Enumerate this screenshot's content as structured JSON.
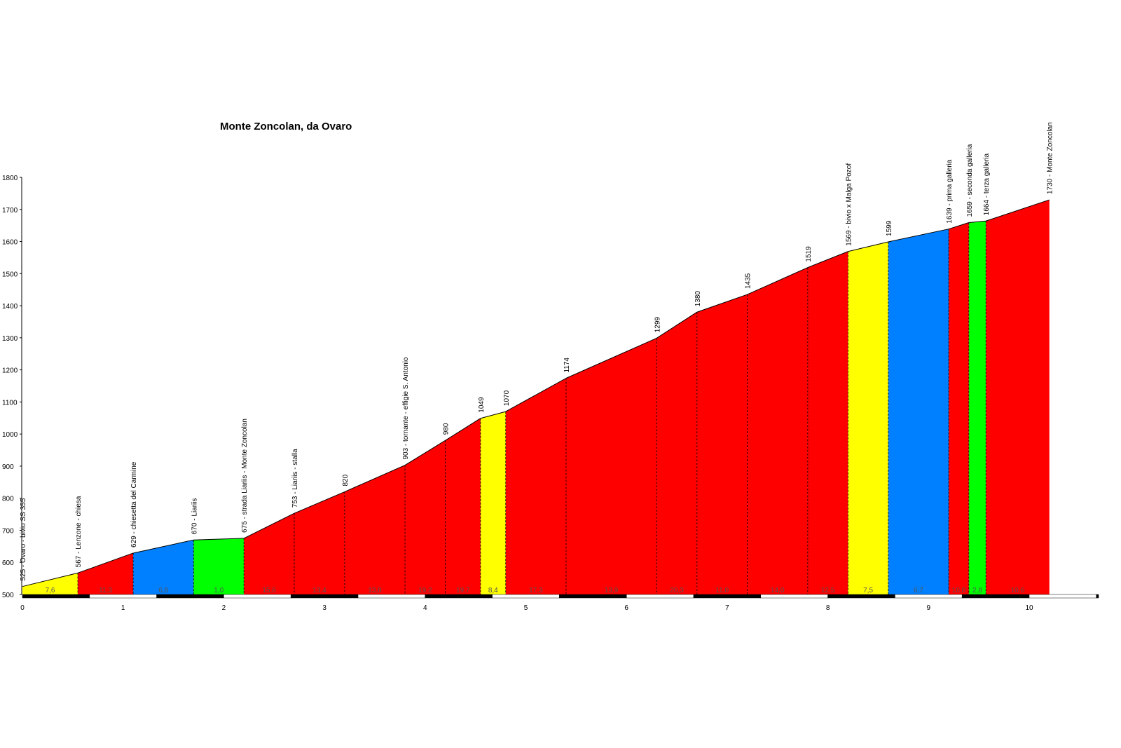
{
  "chart_data": {
    "type": "area",
    "title": "Monte Zoncolan, da Ovaro",
    "xlabel": "",
    "ylabel": "",
    "xlim": [
      0,
      10.7
    ],
    "ylim": [
      500,
      1800
    ],
    "x_ticks": [
      "0",
      "1",
      "2",
      "3",
      "4",
      "5",
      "6",
      "7",
      "8",
      "9",
      "10"
    ],
    "y_ticks": [
      "500",
      "600",
      "700",
      "800",
      "900",
      "1000",
      "1100",
      "1200",
      "1300",
      "1400",
      "1500",
      "1600",
      "1700",
      "1800"
    ],
    "points": [
      {
        "km": 0.0,
        "alt": 525,
        "label": "525 - Ovaro - bivio SS 355"
      },
      {
        "km": 0.55,
        "alt": 567,
        "label": "567 - Lenzone - chiesa"
      },
      {
        "km": 1.1,
        "alt": 629,
        "label": "629 - chiesetta del Carmine"
      },
      {
        "km": 1.7,
        "alt": 670,
        "label": "670 - Liariis"
      },
      {
        "km": 2.2,
        "alt": 675,
        "label": "675 - strada Liariis - Monte Zoncolan"
      },
      {
        "km": 2.7,
        "alt": 753,
        "label": "753 - Liariis - stalla"
      },
      {
        "km": 3.2,
        "alt": 820,
        "label": "820"
      },
      {
        "km": 3.8,
        "alt": 903,
        "label": "903 - tornante - effigie S. Antonio"
      },
      {
        "km": 4.2,
        "alt": 980,
        "label": "980"
      },
      {
        "km": 4.55,
        "alt": 1049,
        "label": "1049"
      },
      {
        "km": 4.8,
        "alt": 1070,
        "label": "1070"
      },
      {
        "km": 5.4,
        "alt": 1174,
        "label": "1174"
      },
      {
        "km": 6.3,
        "alt": 1299,
        "label": "1299"
      },
      {
        "km": 6.7,
        "alt": 1380,
        "label": "1380"
      },
      {
        "km": 7.2,
        "alt": 1435,
        "label": "1435"
      },
      {
        "km": 7.8,
        "alt": 1519,
        "label": "1519"
      },
      {
        "km": 8.2,
        "alt": 1569,
        "label": "1569 - bivio x Malga Pozof"
      },
      {
        "km": 8.6,
        "alt": 1599,
        "label": "1599"
      },
      {
        "km": 9.2,
        "alt": 1639,
        "label": "1639 - prima galleria"
      },
      {
        "km": 9.4,
        "alt": 1659,
        "label": "1659 - seconda galleria"
      },
      {
        "km": 9.57,
        "alt": 1664,
        "label": "1664 - terza galleria"
      },
      {
        "km": 10.2,
        "alt": 1730,
        "label": "1730 - Monte Zoncolan"
      }
    ],
    "segments": [
      {
        "grade": "7,6",
        "color": "#ffff00"
      },
      {
        "grade": "11,3",
        "color": "#ff0000"
      },
      {
        "grade": "6,8",
        "color": "#0080ff"
      },
      {
        "grade": "1,0",
        "color": "#00ff00"
      },
      {
        "grade": "15,6",
        "color": "#ff0000"
      },
      {
        "grade": "13,4",
        "color": "#ff0000"
      },
      {
        "grade": "13,8",
        "color": "#ff0000"
      },
      {
        "grade": "19,2",
        "color": "#ff0000"
      },
      {
        "grade": "19,7",
        "color": "#ff0000"
      },
      {
        "grade": "8,4",
        "color": "#ffff00"
      },
      {
        "grade": "17,3",
        "color": "#ff0000"
      },
      {
        "grade": "13,9",
        "color": "#ff0000"
      },
      {
        "grade": "20,3",
        "color": "#ff0000"
      },
      {
        "grade": "11,0",
        "color": "#ff0000"
      },
      {
        "grade": "14,0",
        "color": "#ff0000"
      },
      {
        "grade": "12,5",
        "color": "#ff0000"
      },
      {
        "grade": "7,5",
        "color": "#ffff00"
      },
      {
        "grade": "6,7",
        "color": "#0080ff"
      },
      {
        "grade": "10,0",
        "color": "#ff0000"
      },
      {
        "grade": "2,8",
        "color": "#00ff00"
      },
      {
        "grade": "10,6",
        "color": "#ff0000"
      }
    ]
  }
}
